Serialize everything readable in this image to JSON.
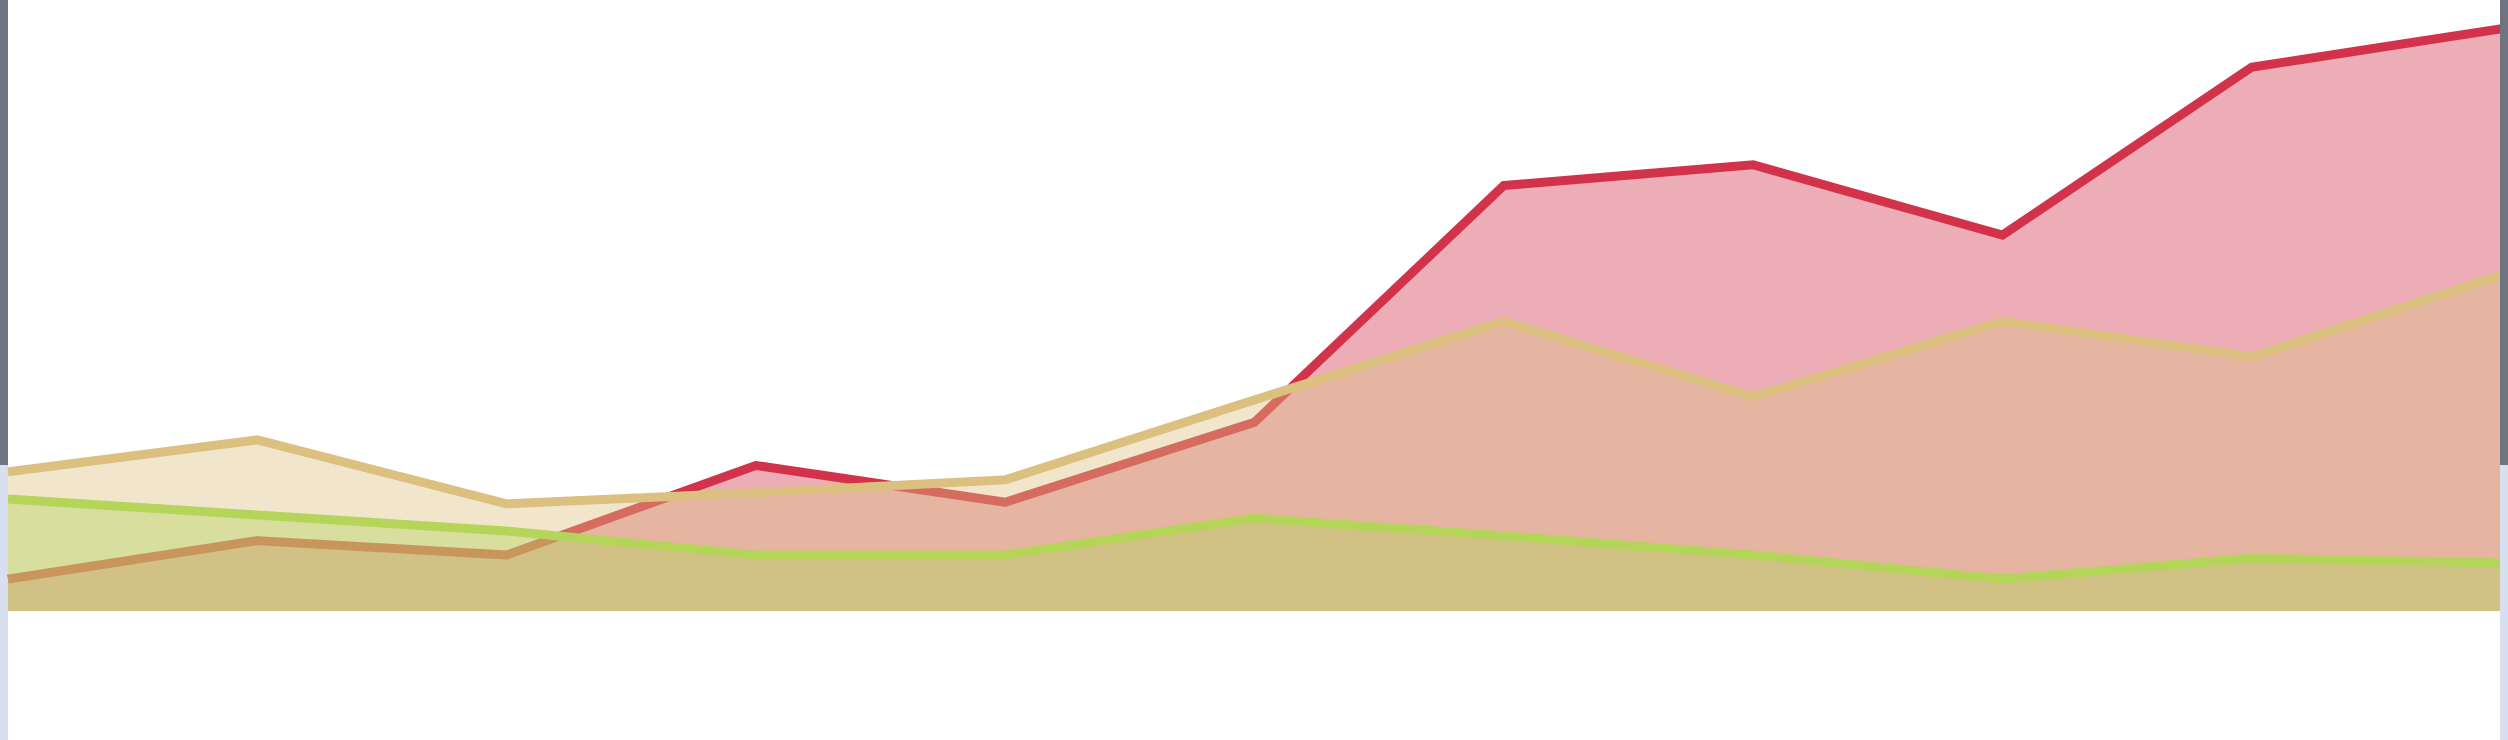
{
  "chart_data": {
    "type": "area",
    "categories": [
      null,
      null,
      null,
      null,
      null,
      null,
      null,
      null,
      null,
      null,
      null
    ],
    "ylim": [
      0,
      382
    ],
    "series": [
      {
        "color": "#d2334a",
        "values": [
          20,
          44,
          35,
          91,
          68,
          118,
          266,
          279,
          235,
          340,
          364
        ]
      },
      {
        "color": "#dcc07f",
        "values": [
          87,
          107,
          67,
          74,
          82,
          132,
          181,
          134,
          181,
          159,
          210
        ]
      },
      {
        "color": "#b5d55a",
        "values": [
          70,
          60,
          50,
          35,
          35,
          58,
          47,
          35,
          20,
          33,
          30
        ]
      }
    ]
  }
}
